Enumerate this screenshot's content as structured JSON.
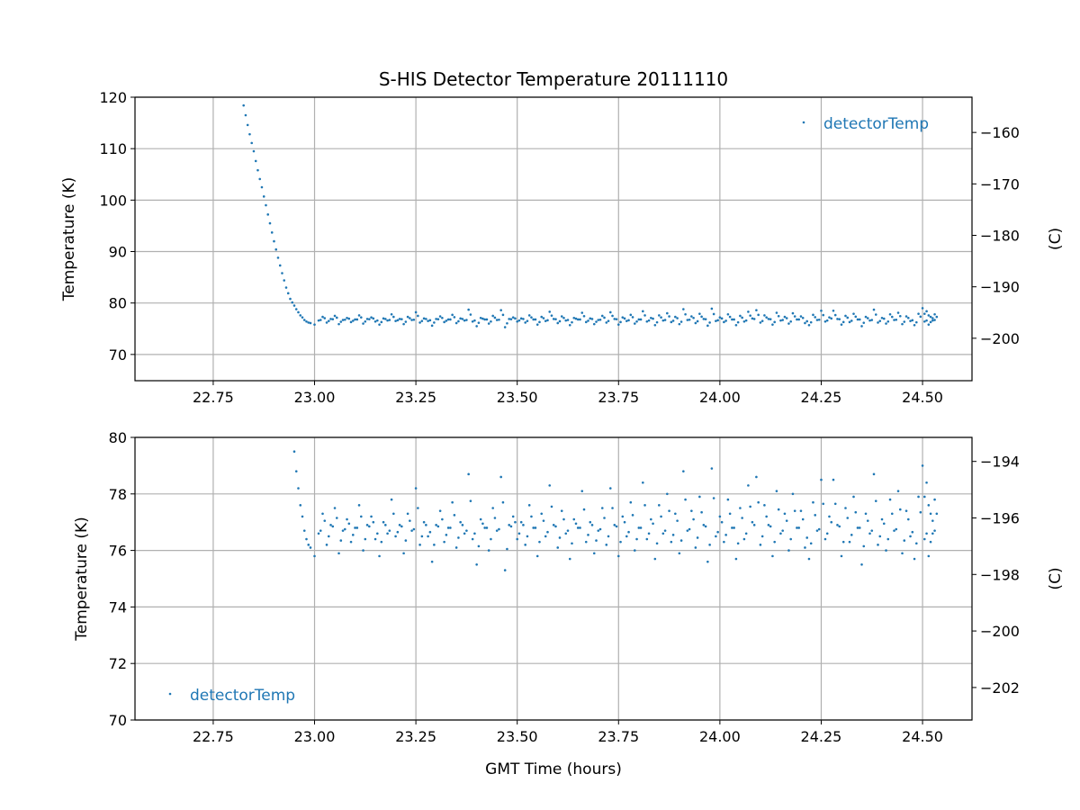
{
  "chart_data": [
    {
      "type": "scatter",
      "title": "S-HIS Detector Temperature 20111110",
      "xlabel": "",
      "ylabel": "Temperature (K)",
      "ylabel_right": "(C)",
      "xlim": [
        22.557,
        24.622
      ],
      "ylim": [
        64.9,
        120
      ],
      "xticks": [
        "22.75",
        "23.00",
        "23.25",
        "23.50",
        "23.75",
        "24.00",
        "24.25",
        "24.50"
      ],
      "yticks": [
        "70",
        "80",
        "90",
        "100",
        "110",
        "120"
      ],
      "yticks_right": [
        "−160",
        "−170",
        "−180",
        "−190",
        "−200"
      ],
      "grid": true,
      "legend": {
        "position": "upper-right",
        "entries": [
          "detectorTemp"
        ]
      },
      "color": "#1f77b4"
    },
    {
      "type": "scatter",
      "title": "",
      "xlabel": "GMT Time (hours)",
      "ylabel": "Temperature (K)",
      "ylabel_right": "(C)",
      "xlim": [
        22.557,
        24.622
      ],
      "ylim": [
        70,
        80
      ],
      "xticks": [
        "22.75",
        "23.00",
        "23.25",
        "23.50",
        "23.75",
        "24.00",
        "24.25",
        "24.50"
      ],
      "yticks": [
        "70",
        "72",
        "74",
        "76",
        "78",
        "80"
      ],
      "yticks_right": [
        "−194",
        "−196",
        "−198",
        "−200",
        "−202"
      ],
      "grid": true,
      "legend": {
        "position": "lower-left",
        "entries": [
          "detectorTemp"
        ]
      },
      "color": "#1f77b4"
    }
  ],
  "series": {
    "name": "detectorTemp",
    "points": [
      [
        22.82,
        120.5
      ],
      [
        22.825,
        118.4
      ],
      [
        22.83,
        116.5
      ],
      [
        22.835,
        114.6
      ],
      [
        22.84,
        112.8
      ],
      [
        22.845,
        111.1
      ],
      [
        22.85,
        109.5
      ],
      [
        22.855,
        107.6
      ],
      [
        22.86,
        105.8
      ],
      [
        22.865,
        104.1
      ],
      [
        22.87,
        102.5
      ],
      [
        22.875,
        100.7
      ],
      [
        22.88,
        99.0
      ],
      [
        22.885,
        97.2
      ],
      [
        22.89,
        95.5
      ],
      [
        22.895,
        93.7
      ],
      [
        22.9,
        92.0
      ],
      [
        22.905,
        90.4
      ],
      [
        22.91,
        88.8
      ],
      [
        22.915,
        87.3
      ],
      [
        22.92,
        85.8
      ],
      [
        22.925,
        84.4
      ],
      [
        22.93,
        83.0
      ],
      [
        22.935,
        81.9
      ],
      [
        22.94,
        80.8
      ],
      [
        22.945,
        80.1
      ],
      [
        22.95,
        79.5
      ],
      [
        22.955,
        78.8
      ],
      [
        22.96,
        78.2
      ],
      [
        22.965,
        77.6
      ],
      [
        22.97,
        77.2
      ],
      [
        22.975,
        76.7
      ],
      [
        22.98,
        76.4
      ],
      [
        22.985,
        76.2
      ],
      [
        22.99,
        76.1
      ],
      [
        23.0,
        75.8
      ],
      [
        23.01,
        76.6
      ],
      [
        23.02,
        77.3
      ],
      [
        23.03,
        76.2
      ],
      [
        23.04,
        76.9
      ],
      [
        23.05,
        77.5
      ],
      [
        23.06,
        75.9
      ],
      [
        23.07,
        76.7
      ],
      [
        23.08,
        77.1
      ],
      [
        23.09,
        76.3
      ],
      [
        23.1,
        76.8
      ],
      [
        23.11,
        77.6
      ],
      [
        23.12,
        76.0
      ],
      [
        23.13,
        76.9
      ],
      [
        23.14,
        77.2
      ],
      [
        23.15,
        76.4
      ],
      [
        23.16,
        75.8
      ],
      [
        23.17,
        77.0
      ],
      [
        23.18,
        76.6
      ],
      [
        23.19,
        77.8
      ],
      [
        23.2,
        76.5
      ],
      [
        23.21,
        76.9
      ],
      [
        23.22,
        75.9
      ],
      [
        23.23,
        77.3
      ],
      [
        23.24,
        76.7
      ],
      [
        23.25,
        78.2
      ],
      [
        23.26,
        76.2
      ],
      [
        23.27,
        77.0
      ],
      [
        23.28,
        76.5
      ],
      [
        23.29,
        75.6
      ],
      [
        23.3,
        76.9
      ],
      [
        23.31,
        77.4
      ],
      [
        23.32,
        76.3
      ],
      [
        23.33,
        76.8
      ],
      [
        23.34,
        77.7
      ],
      [
        23.35,
        76.1
      ],
      [
        23.36,
        77.0
      ],
      [
        23.37,
        76.6
      ],
      [
        23.38,
        78.7
      ],
      [
        23.39,
        76.4
      ],
      [
        23.4,
        75.5
      ],
      [
        23.41,
        77.1
      ],
      [
        23.42,
        76.8
      ],
      [
        23.43,
        76.0
      ],
      [
        23.44,
        77.5
      ],
      [
        23.45,
        76.7
      ],
      [
        23.46,
        78.6
      ],
      [
        23.47,
        75.3
      ],
      [
        23.48,
        76.9
      ],
      [
        23.49,
        77.2
      ],
      [
        23.5,
        76.4
      ],
      [
        23.51,
        77.0
      ],
      [
        23.52,
        76.2
      ],
      [
        23.53,
        77.6
      ],
      [
        23.54,
        76.8
      ],
      [
        23.55,
        75.8
      ],
      [
        23.56,
        77.3
      ],
      [
        23.57,
        76.5
      ],
      [
        23.58,
        78.3
      ],
      [
        23.59,
        76.9
      ],
      [
        23.6,
        76.1
      ],
      [
        23.61,
        77.4
      ],
      [
        23.62,
        76.6
      ],
      [
        23.63,
        75.7
      ],
      [
        23.64,
        77.1
      ],
      [
        23.65,
        76.8
      ],
      [
        23.66,
        78.1
      ],
      [
        23.67,
        76.3
      ],
      [
        23.68,
        77.0
      ],
      [
        23.69,
        75.9
      ],
      [
        23.7,
        76.7
      ],
      [
        23.71,
        77.5
      ],
      [
        23.72,
        76.2
      ],
      [
        23.73,
        78.2
      ],
      [
        23.74,
        76.9
      ],
      [
        23.75,
        75.8
      ],
      [
        23.76,
        77.2
      ],
      [
        23.77,
        76.5
      ],
      [
        23.78,
        77.7
      ],
      [
        23.79,
        76.0
      ],
      [
        23.8,
        76.8
      ],
      [
        23.81,
        78.4
      ],
      [
        23.82,
        76.4
      ],
      [
        23.83,
        77.1
      ],
      [
        23.84,
        75.7
      ],
      [
        23.85,
        77.6
      ],
      [
        23.86,
        76.6
      ],
      [
        23.87,
        78.0
      ],
      [
        23.88,
        76.3
      ],
      [
        23.89,
        77.3
      ],
      [
        23.9,
        75.9
      ],
      [
        23.91,
        78.8
      ],
      [
        23.92,
        76.7
      ],
      [
        23.93,
        77.4
      ],
      [
        23.94,
        76.1
      ],
      [
        23.95,
        77.9
      ],
      [
        23.96,
        76.9
      ],
      [
        23.97,
        75.6
      ],
      [
        23.98,
        78.9
      ],
      [
        23.99,
        76.5
      ],
      [
        24.0,
        77.2
      ],
      [
        24.01,
        76.3
      ],
      [
        24.02,
        77.8
      ],
      [
        24.03,
        76.8
      ],
      [
        24.04,
        75.7
      ],
      [
        24.05,
        77.5
      ],
      [
        24.06,
        76.4
      ],
      [
        24.07,
        78.3
      ],
      [
        24.08,
        77.0
      ],
      [
        24.09,
        78.6
      ],
      [
        24.1,
        76.2
      ],
      [
        24.11,
        77.6
      ],
      [
        24.12,
        76.9
      ],
      [
        24.13,
        75.8
      ],
      [
        24.14,
        78.1
      ],
      [
        24.15,
        76.6
      ],
      [
        24.16,
        77.3
      ],
      [
        24.17,
        76.0
      ],
      [
        24.18,
        78.0
      ],
      [
        24.19,
        76.8
      ],
      [
        24.2,
        77.4
      ],
      [
        24.21,
        76.1
      ],
      [
        24.22,
        75.7
      ],
      [
        24.23,
        77.7
      ],
      [
        24.24,
        76.7
      ],
      [
        24.25,
        78.5
      ],
      [
        24.26,
        76.4
      ],
      [
        24.27,
        77.2
      ],
      [
        24.28,
        78.5
      ],
      [
        24.29,
        76.9
      ],
      [
        24.3,
        75.8
      ],
      [
        24.31,
        77.5
      ],
      [
        24.32,
        76.3
      ],
      [
        24.33,
        77.9
      ],
      [
        24.34,
        76.8
      ],
      [
        24.35,
        75.5
      ],
      [
        24.36,
        77.3
      ],
      [
        24.37,
        76.6
      ],
      [
        24.38,
        78.7
      ],
      [
        24.39,
        76.2
      ],
      [
        24.4,
        77.1
      ],
      [
        24.41,
        76.0
      ],
      [
        24.42,
        77.8
      ],
      [
        24.43,
        76.7
      ],
      [
        24.44,
        78.1
      ],
      [
        24.45,
        75.9
      ],
      [
        24.46,
        77.4
      ],
      [
        24.47,
        76.5
      ],
      [
        24.48,
        75.7
      ],
      [
        24.49,
        77.9
      ],
      [
        24.5,
        79.0
      ],
      [
        24.505,
        76.4
      ],
      [
        24.51,
        78.4
      ],
      [
        24.515,
        75.8
      ],
      [
        24.52,
        77.3
      ],
      [
        24.525,
        76.6
      ],
      [
        24.53,
        77.8
      ]
    ]
  }
}
